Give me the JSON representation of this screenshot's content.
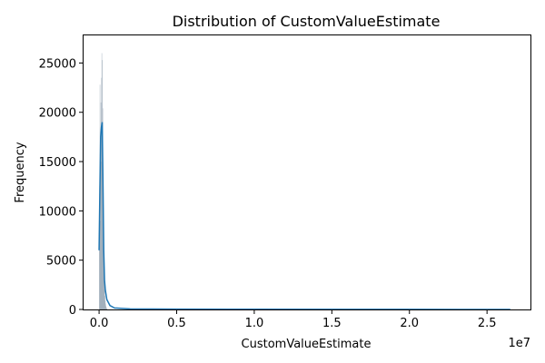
{
  "chart_data": {
    "type": "histogram",
    "title": "Distribution of CustomValueEstimate",
    "xlabel": "CustomValueEstimate",
    "ylabel": "Frequency",
    "x_scale_note": "1e7",
    "xlim": [
      -1000000,
      27800000
    ],
    "ylim": [
      0,
      27800
    ],
    "x_ticks": [
      {
        "value": 0,
        "label": "0.0"
      },
      {
        "value": 5000000,
        "label": "0.5"
      },
      {
        "value": 10000000,
        "label": "1.0"
      },
      {
        "value": 15000000,
        "label": "1.5"
      },
      {
        "value": 20000000,
        "label": "2.0"
      },
      {
        "value": 25000000,
        "label": "2.5"
      }
    ],
    "y_ticks": [
      {
        "value": 0,
        "label": "0"
      },
      {
        "value": 5000,
        "label": "5000"
      },
      {
        "value": 10000,
        "label": "10000"
      },
      {
        "value": 15000,
        "label": "15000"
      },
      {
        "value": 20000,
        "label": "20000"
      },
      {
        "value": 25000,
        "label": "25000"
      }
    ],
    "bars": [
      {
        "x": 0,
        "y": 6000
      },
      {
        "x": 20000,
        "y": 12500
      },
      {
        "x": 40000,
        "y": 22800
      },
      {
        "x": 60000,
        "y": 9000
      },
      {
        "x": 80000,
        "y": 16000
      },
      {
        "x": 100000,
        "y": 21000
      },
      {
        "x": 120000,
        "y": 15000
      },
      {
        "x": 140000,
        "y": 23500
      },
      {
        "x": 160000,
        "y": 26000
      },
      {
        "x": 180000,
        "y": 18000
      },
      {
        "x": 200000,
        "y": 25300
      },
      {
        "x": 220000,
        "y": 20400
      },
      {
        "x": 240000,
        "y": 13500
      },
      {
        "x": 260000,
        "y": 10000
      },
      {
        "x": 280000,
        "y": 7000
      },
      {
        "x": 300000,
        "y": 4500
      },
      {
        "x": 320000,
        "y": 3000
      },
      {
        "x": 340000,
        "y": 2000
      },
      {
        "x": 360000,
        "y": 1400
      },
      {
        "x": 380000,
        "y": 900
      },
      {
        "x": 400000,
        "y": 600
      },
      {
        "x": 420000,
        "y": 400
      },
      {
        "x": 440000,
        "y": 250
      },
      {
        "x": 460000,
        "y": 150
      },
      {
        "x": 480000,
        "y": 100
      }
    ],
    "kde": {
      "x": [
        0,
        50000,
        100000,
        150000,
        200000,
        250000,
        300000,
        350000,
        400000,
        500000,
        700000,
        1000000,
        2000000,
        5000000,
        10000000,
        20000000,
        26500000
      ],
      "y": [
        6000,
        12000,
        17500,
        18500,
        19000,
        13000,
        6000,
        3000,
        2000,
        1000,
        400,
        150,
        60,
        30,
        20,
        10,
        0
      ]
    },
    "colors": {
      "bar_fill": "#7d8fa3",
      "kde_line": "#1f77b4",
      "axis": "#000000"
    }
  }
}
